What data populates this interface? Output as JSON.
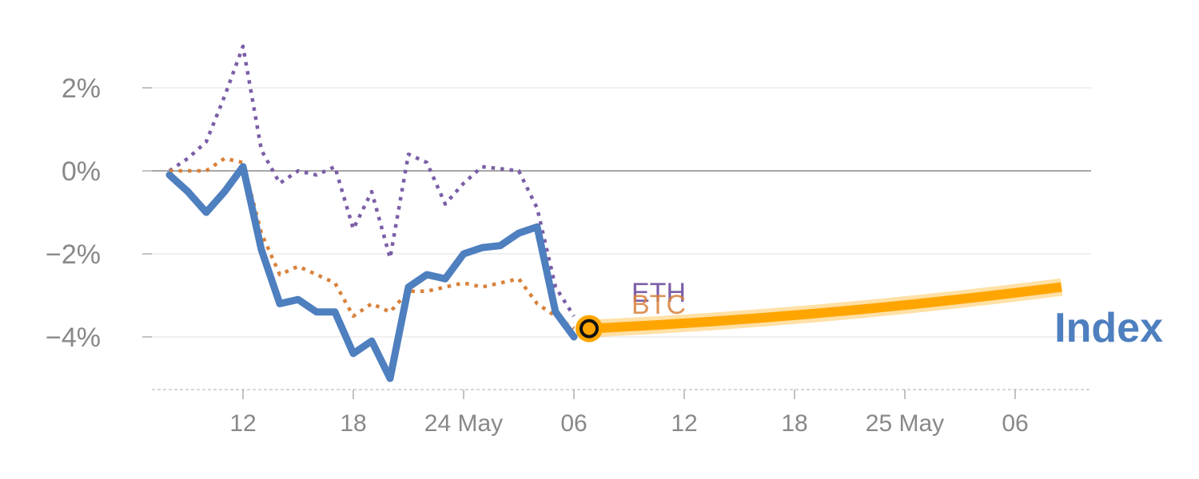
{
  "chart_data": {
    "type": "line",
    "title": "",
    "xlabel": "",
    "ylabel": "",
    "ylim": [
      -5.3,
      3.0
    ],
    "x_ticks": [
      "12",
      "18",
      "24 May",
      "06",
      "12",
      "18",
      "25 May",
      "06"
    ],
    "y_ticks": [
      {
        "value": 2,
        "label": "2%"
      },
      {
        "value": 0,
        "label": "0%"
      },
      {
        "value": -2,
        "label": "−2%"
      },
      {
        "value": -4,
        "label": "−4%"
      }
    ],
    "series": [
      {
        "name": "ETH",
        "style": "dotted",
        "color": "#7b5ea7",
        "values": [
          0,
          0.3,
          0.7,
          1.8,
          3.0,
          0.5,
          -0.3,
          0.0,
          -0.1,
          0.1,
          -1.4,
          -0.5,
          -2.1,
          0.4,
          0.2,
          -0.8,
          -0.3,
          0.1,
          0.05,
          0.0,
          -0.9,
          -2.8,
          -3.5
        ]
      },
      {
        "name": "BTC",
        "style": "dotted",
        "color": "#d9813a",
        "values": [
          0,
          0.0,
          0.0,
          0.3,
          0.2,
          -1.5,
          -2.5,
          -2.3,
          -2.5,
          -2.7,
          -3.5,
          -3.2,
          -3.4,
          -2.9,
          -2.9,
          -2.8,
          -2.7,
          -2.8,
          -2.7,
          -2.6,
          -3.2,
          -3.5,
          -3.8
        ]
      },
      {
        "name": "Index",
        "style": "solid",
        "color": "#4e7fbf",
        "values": [
          -0.1,
          -0.5,
          -1.0,
          -0.5,
          0.1,
          -1.9,
          -3.2,
          -3.1,
          -3.4,
          -3.4,
          -4.4,
          -4.1,
          -5.0,
          -2.8,
          -2.5,
          -2.6,
          -2.0,
          -1.85,
          -1.8,
          -1.5,
          -1.35,
          -3.4,
          -4.0
        ]
      }
    ],
    "forecast": {
      "name": "Index forecast",
      "color": "#ffa500",
      "start_value": -3.8,
      "end_value": -2.8
    },
    "labels": {
      "eth": "ETH",
      "btc": "BTC",
      "index": "Index"
    }
  }
}
